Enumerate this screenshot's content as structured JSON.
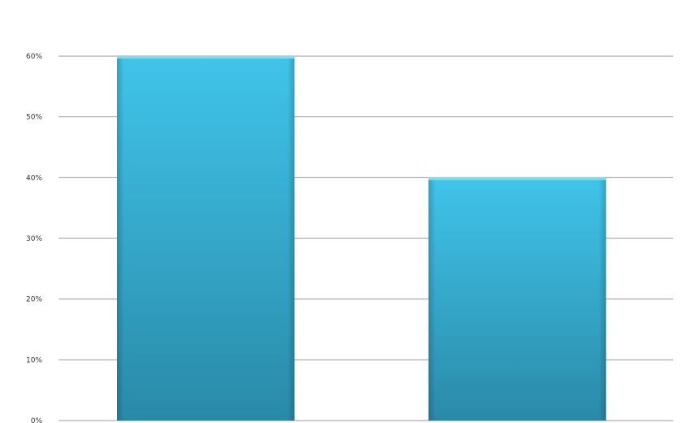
{
  "chart_data": {
    "type": "bar",
    "categories": [
      "",
      ""
    ],
    "values": [
      60,
      40
    ],
    "title": "",
    "xlabel": "",
    "ylabel": "",
    "ylim": [
      0,
      60
    ],
    "yticks": [
      "0%",
      "10%",
      "20%",
      "30%",
      "40%",
      "50%",
      "60%"
    ],
    "grid": true,
    "legend": "none",
    "colors": {
      "bar_top": "#40c4ea",
      "bar_bottom": "#2a8aa8",
      "grid": "#999999"
    }
  }
}
